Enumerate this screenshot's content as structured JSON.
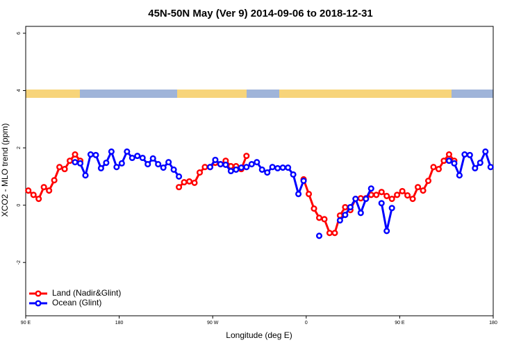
{
  "chart_data": {
    "type": "line",
    "title": "45N-50N May (Ver 9)   2014-09-06 to 2018-12-31",
    "x_label": "Longitude (deg E)",
    "y_label": "XCO2 - MLO trend (ppm)",
    "xlim": [
      90,
      540
    ],
    "ylim": [
      -3.86,
      6.24
    ],
    "xticks": [
      {
        "value": 90,
        "label": "90 E"
      },
      180,
      {
        "value": 270,
        "label": "90 W"
      },
      {
        "value": 360,
        "label": "0"
      },
      {
        "value": 450,
        "label": "90 E"
      },
      {
        "value": 540,
        "label": "180"
      }
    ],
    "yticks": [
      -2,
      0,
      2,
      4,
      6
    ],
    "legend": "bottom-left",
    "series": [
      {
        "name": "Land (Nadir&Glint)",
        "color": "#ff0000",
        "x": [
          92.5,
          97.5,
          102.5,
          107.5,
          112.5,
          117.5,
          122.5,
          127.5,
          132.5,
          137.5,
          142.5,
          190,
          237.5,
          242.5,
          247.5,
          252.5,
          257.5,
          262.5,
          267.5,
          272.5,
          277.5,
          282.5,
          287.5,
          292.5,
          297.5,
          302.5,
          330,
          357.5,
          362.5,
          367.5,
          372.5,
          377.5,
          382.5,
          387.5,
          392.5,
          397.5,
          402.5,
          407.5,
          412.5,
          417.5,
          422.5,
          427.5,
          432.5,
          437.5,
          442.5,
          447.5,
          452.5,
          457.5,
          462.5,
          467.5,
          472.5,
          477.5,
          482.5,
          487.5,
          492.5,
          497.5,
          502.5
        ],
        "values": [
          0.51,
          0.36,
          0.22,
          0.63,
          0.51,
          0.87,
          1.33,
          1.26,
          1.55,
          1.77,
          1.55,
          null,
          0.63,
          0.8,
          0.83,
          0.78,
          1.14,
          1.33,
          1.33,
          1.48,
          1.43,
          1.55,
          1.36,
          1.36,
          1.26,
          1.72,
          null,
          0.9,
          0.39,
          -0.12,
          -0.44,
          -0.49,
          -0.97,
          -0.97,
          -0.36,
          -0.07,
          -0.17,
          0.22,
          0.24,
          0.24,
          0.36,
          0.36,
          0.46,
          0.32,
          0.22,
          0.36,
          0.49,
          0.34,
          0.22,
          0.63,
          0.51,
          0.85,
          1.33,
          1.26,
          1.55,
          1.77,
          1.55
        ]
      },
      {
        "name": "Ocean (Glint)",
        "color": "#0000ff",
        "x": [
          137.5,
          142.5,
          147.5,
          152.5,
          157.5,
          162.5,
          167.5,
          172.5,
          177.5,
          182.5,
          187.5,
          192.5,
          197.5,
          202.5,
          207.5,
          212.5,
          217.5,
          222.5,
          227.5,
          232.5,
          237.5,
          252.5,
          267.5,
          272.5,
          277.5,
          282.5,
          287.5,
          292.5,
          297.5,
          302.5,
          307.5,
          312.5,
          317.5,
          322.5,
          327.5,
          332.5,
          337.5,
          342.5,
          347.5,
          352.5,
          357.5,
          365,
          372.5,
          382.5,
          392.5,
          397.5,
          402.5,
          407.5,
          412.5,
          417.5,
          422.5,
          427.5,
          432.5,
          437.5,
          442.5,
          470,
          497.5,
          502.5,
          507.5,
          512.5,
          517.5,
          522.5,
          527.5,
          532.5,
          537.5
        ],
        "values": [
          1.5,
          1.46,
          1.04,
          1.77,
          1.75,
          1.29,
          1.48,
          1.87,
          1.33,
          1.46,
          1.87,
          1.65,
          1.72,
          1.65,
          1.43,
          1.63,
          1.43,
          1.31,
          1.5,
          1.24,
          1.0,
          null,
          1.33,
          1.58,
          1.43,
          1.41,
          1.19,
          1.24,
          1.31,
          1.33,
          1.43,
          1.5,
          1.24,
          1.14,
          1.33,
          1.29,
          1.31,
          1.31,
          1.07,
          0.39,
          0.85,
          null,
          -1.07,
          null,
          -0.53,
          -0.34,
          -0.07,
          0.22,
          -0.27,
          0.22,
          0.58,
          null,
          0.07,
          -0.9,
          -0.1,
          null,
          1.55,
          1.46,
          1.04,
          1.77,
          1.75,
          1.29,
          1.48,
          1.87,
          1.33
        ]
      }
    ]
  }
}
